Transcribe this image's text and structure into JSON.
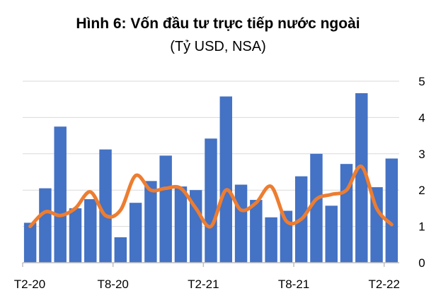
{
  "chart_data": {
    "type": "bar",
    "title": "Hình 6: Vốn đầu tư trực tiếp nước ngoài",
    "subtitle": "(Tỷ USD, NSA)",
    "x_ticks": [
      "T2-20",
      "T8-20",
      "T2-21",
      "T8-21",
      "T2-22"
    ],
    "x_tick_index": [
      0,
      6,
      12,
      18,
      24
    ],
    "ylim": [
      0,
      5
    ],
    "y_ticks": [
      "0",
      "1",
      "2",
      "3",
      "4",
      "5"
    ],
    "y_axis_side": "right",
    "grid": true,
    "colors": {
      "bars": "#4472C4",
      "line": "#ED7D31",
      "grid": "#D9D9D9"
    },
    "series": [
      {
        "type": "bar",
        "values": [
          1.1,
          2.05,
          3.75,
          1.5,
          1.75,
          3.12,
          0.7,
          1.65,
          2.25,
          2.95,
          2.1,
          2.0,
          3.42,
          4.58,
          2.15,
          1.73,
          1.25,
          1.43,
          2.38,
          3.0,
          1.57,
          2.72,
          4.67,
          2.08,
          2.87
        ]
      },
      {
        "type": "line",
        "values": [
          1.0,
          1.4,
          1.3,
          1.5,
          1.95,
          1.3,
          1.45,
          2.4,
          2.0,
          2.05,
          2.05,
          1.5,
          1.0,
          2.0,
          1.45,
          1.65,
          2.1,
          1.15,
          1.2,
          1.75,
          1.88,
          2.0,
          2.65,
          1.5,
          1.05
        ]
      }
    ]
  }
}
